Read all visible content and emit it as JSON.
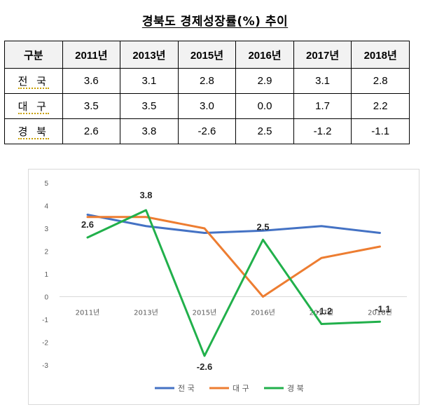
{
  "title": "경북도 경제성장률(%) 추이",
  "table": {
    "corner": "구분",
    "columns": [
      "2011년",
      "2013년",
      "2015년",
      "2016년",
      "2017년",
      "2018년"
    ],
    "rows": [
      {
        "name": "전 국",
        "values": [
          "3.6",
          "3.1",
          "2.8",
          "2.9",
          "3.1",
          "2.8"
        ]
      },
      {
        "name": "대 구",
        "values": [
          "3.5",
          "3.5",
          "3.0",
          "0.0",
          "1.7",
          "2.2"
        ]
      },
      {
        "name": "경 북",
        "values": [
          "2.6",
          "3.8",
          "-2.6",
          "2.5",
          "-1.2",
          "-1.1"
        ]
      }
    ]
  },
  "chart_data": {
    "type": "line",
    "categories": [
      "2011년",
      "2013년",
      "2015년",
      "2016년",
      "2017년",
      "2018년"
    ],
    "series": [
      {
        "name": "전 국",
        "color": "#4472c4",
        "values": [
          3.6,
          3.1,
          2.8,
          2.9,
          3.1,
          2.8
        ]
      },
      {
        "name": "대 구",
        "color": "#ed7d31",
        "values": [
          3.5,
          3.5,
          3.0,
          0.0,
          1.7,
          2.2
        ]
      },
      {
        "name": "경 북",
        "color": "#21b04b",
        "values": [
          2.6,
          3.8,
          -2.6,
          2.5,
          -1.2,
          -1.1
        ]
      }
    ],
    "data_labels": {
      "series": "경 북",
      "values": [
        "2.6",
        "3.8",
        "-2.6",
        "2.5",
        "-1.2",
        "-1.1"
      ]
    },
    "ylim": [
      -3,
      5
    ],
    "yticks": [
      "5",
      "4",
      "3",
      "2",
      "1",
      "0",
      "-1",
      "-2",
      "-3"
    ],
    "grid": false,
    "legend": "bottom"
  }
}
